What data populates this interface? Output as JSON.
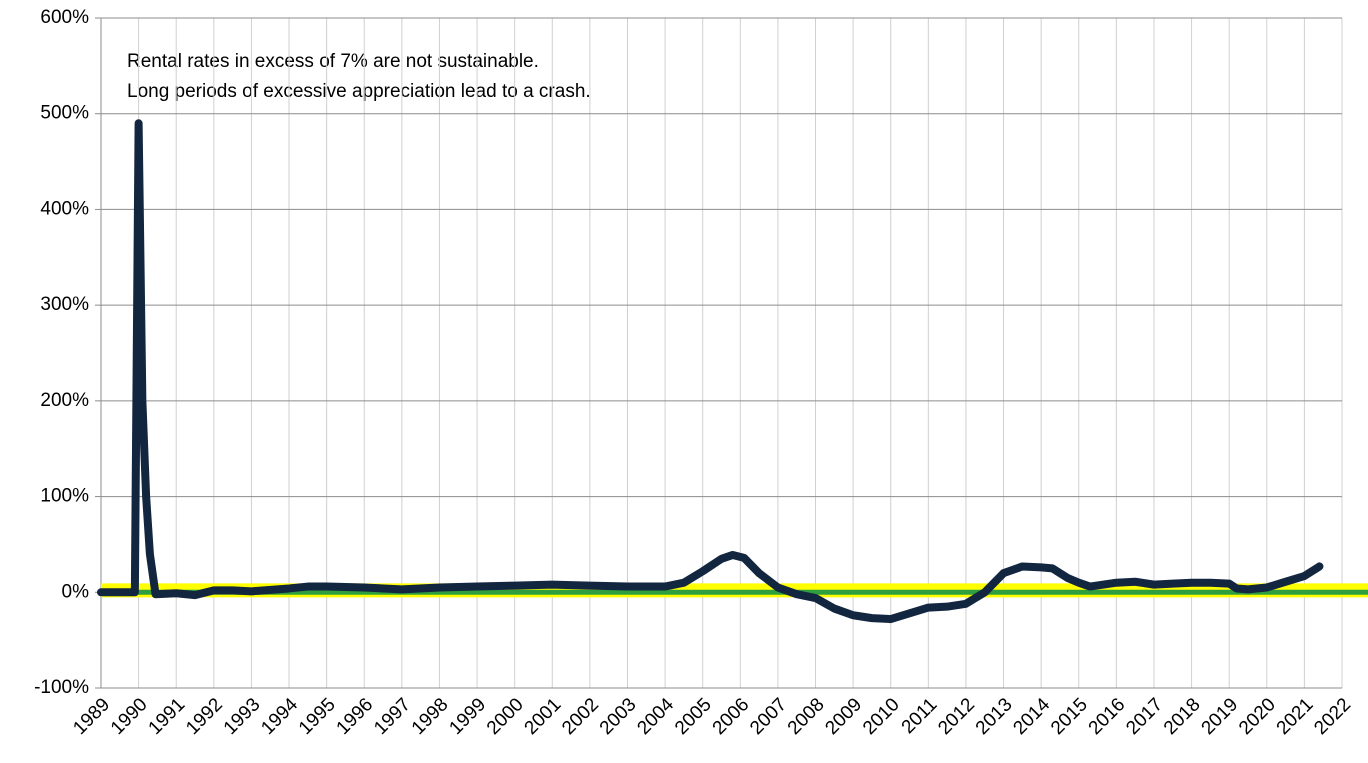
{
  "chart_data": {
    "type": "line",
    "annotations": [
      "Rental rates in excess of 7% are not sustainable.",
      "Long periods of excessive appreciation lead to a crash."
    ],
    "xlim": [
      1989,
      2022
    ],
    "xticks": [
      1989,
      1990,
      1991,
      1992,
      1993,
      1994,
      1995,
      1996,
      1997,
      1998,
      1999,
      2000,
      2001,
      2002,
      2003,
      2004,
      2005,
      2006,
      2007,
      2008,
      2009,
      2010,
      2011,
      2012,
      2013,
      2014,
      2015,
      2016,
      2017,
      2018,
      2019,
      2020,
      2021,
      2022
    ],
    "ylim": [
      -100,
      600
    ],
    "yticks": [
      {
        "value": -100,
        "label": "-100%"
      },
      {
        "value": 0,
        "label": "0%"
      },
      {
        "value": 100,
        "label": "100%"
      },
      {
        "value": 200,
        "label": "200%"
      },
      {
        "value": 300,
        "label": "300%"
      },
      {
        "value": 400,
        "label": "400%"
      },
      {
        "value": 500,
        "label": "500%"
      },
      {
        "value": 600,
        "label": "600%"
      }
    ],
    "grid": true,
    "reference_lines": [
      {
        "value": 2,
        "color": "#ffff00"
      },
      {
        "value": 0,
        "color": "#2e9e3e"
      }
    ],
    "series": [
      {
        "color": "#132640",
        "x": [
          1989,
          1989.9,
          1990.0,
          1990.1,
          1990.2,
          1990.3,
          1990.45,
          1991,
          1991.5,
          1992,
          1992.5,
          1993,
          1994,
          1994.5,
          1995,
          1996,
          1997,
          1998,
          1999,
          2000,
          2001,
          2002,
          2003,
          2004,
          2004.5,
          2005,
          2005.5,
          2005.8,
          2006.1,
          2006.5,
          2007,
          2007.5,
          2008,
          2008.5,
          2009,
          2009.5,
          2010,
          2010.5,
          2011,
          2011.5,
          2012,
          2012.5,
          2013,
          2013.5,
          2014,
          2014.3,
          2014.7,
          2015,
          2015.3,
          2016,
          2016.5,
          2017,
          2017.5,
          2018,
          2018.5,
          2019,
          2019.2,
          2019.5,
          2020,
          2020.5,
          2021,
          2021.4
        ],
        "values": [
          0,
          0,
          490,
          200,
          100,
          40,
          -2,
          -1,
          -3,
          2,
          2,
          1,
          4,
          6,
          6,
          5,
          3,
          5,
          6,
          7,
          8,
          7,
          6,
          6,
          10,
          22,
          35,
          39,
          36,
          20,
          5,
          -2,
          -6,
          -17,
          -24,
          -27,
          -28,
          -22,
          -16,
          -15,
          -12,
          0,
          20,
          27,
          26,
          25,
          15,
          10,
          6,
          10,
          11,
          8,
          9,
          10,
          10,
          9,
          4,
          3,
          5,
          11,
          17,
          27
        ]
      }
    ]
  }
}
